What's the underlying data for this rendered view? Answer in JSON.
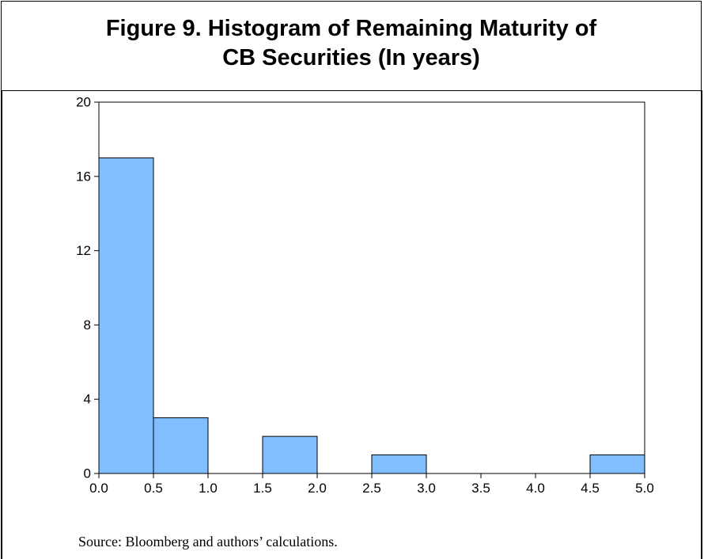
{
  "title": {
    "line1": "Figure 9. Histogram of Remaining Maturity of",
    "line2": "CB Securities (In years)"
  },
  "source": "Source: Bloomberg and authors’ calculations.",
  "chart_data": {
    "type": "bar",
    "subtype": "histogram",
    "title": "Figure 9. Histogram of Remaining Maturity of CB Securities (In years)",
    "xlabel": "",
    "ylabel": "",
    "bin_edges": [
      0.0,
      0.5,
      1.0,
      1.5,
      2.0,
      2.5,
      3.0,
      3.5,
      4.0,
      4.5,
      5.0
    ],
    "values": [
      17,
      3,
      0,
      2,
      0,
      1,
      0,
      0,
      0,
      1
    ],
    "xlim": [
      0.0,
      5.0
    ],
    "ylim": [
      0,
      20
    ],
    "x_ticks": [
      "0.0",
      "0.5",
      "1.0",
      "1.5",
      "2.0",
      "2.5",
      "3.0",
      "3.5",
      "4.0",
      "4.5",
      "5.0"
    ],
    "y_ticks": [
      "0",
      "4",
      "8",
      "12",
      "16",
      "20"
    ],
    "bar_color": "#80bfff",
    "grid": false,
    "legend": "none"
  }
}
